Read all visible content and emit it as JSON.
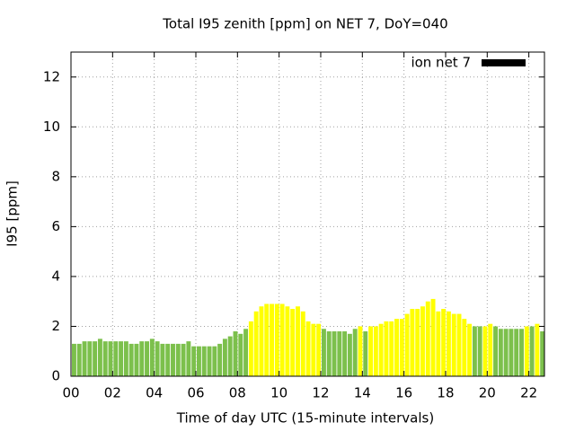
{
  "chart_data": {
    "type": "bar",
    "title": "Total I95 zenith [ppm] on NET 7, DoY=040",
    "x_label": "Time of day UTC (15-minute intervals)",
    "y_label": "I95 [ppm]",
    "x": [
      0,
      0.25,
      0.5,
      0.75,
      1,
      1.25,
      1.5,
      1.75,
      2,
      2.25,
      2.5,
      2.75,
      3,
      3.25,
      3.5,
      3.75,
      4,
      4.25,
      4.5,
      4.75,
      5,
      5.25,
      5.5,
      5.75,
      6,
      6.25,
      6.5,
      6.75,
      7,
      7.25,
      7.5,
      7.75,
      8,
      8.25,
      8.5,
      8.75,
      9,
      9.25,
      9.5,
      9.75,
      10,
      10.25,
      10.5,
      10.75,
      11,
      11.25,
      11.5,
      11.75,
      12,
      12.25,
      12.5,
      12.75,
      13,
      13.25,
      13.5,
      13.75,
      14,
      14.25,
      14.5,
      14.75,
      15,
      15.25,
      15.5,
      15.75,
      16,
      16.25,
      16.5,
      16.75,
      17,
      17.25,
      17.5,
      17.75,
      18,
      18.25,
      18.5,
      18.75,
      19,
      19.25,
      19.5,
      19.75,
      20,
      20.25,
      20.5,
      20.75,
      21,
      21.25,
      21.5,
      21.75,
      22,
      22.25,
      22.5
    ],
    "series": [
      {
        "name": "ion net 7",
        "color": "#000000",
        "values": [
          1.3,
          1.3,
          1.4,
          1.4,
          1.4,
          1.5,
          1.4,
          1.4,
          1.4,
          1.4,
          1.4,
          1.3,
          1.3,
          1.4,
          1.4,
          1.5,
          1.4,
          1.3,
          1.3,
          1.3,
          1.3,
          1.3,
          1.4,
          1.2,
          1.2,
          1.2,
          1.2,
          1.2,
          1.3,
          1.5,
          1.6,
          1.8,
          1.7,
          1.9,
          2.2,
          2.6,
          2.8,
          2.9,
          2.9,
          2.9,
          2.9,
          2.8,
          2.7,
          2.8,
          2.6,
          2.2,
          2.1,
          2.1,
          1.9,
          1.8,
          1.8,
          1.8,
          1.8,
          1.7,
          1.9,
          2.0,
          1.8,
          2.0,
          2.0,
          2.1,
          2.2,
          2.2,
          2.3,
          2.3,
          2.5,
          2.7,
          2.7,
          2.8,
          3.0,
          3.1,
          2.6,
          2.7,
          2.6,
          2.5,
          2.5,
          2.3,
          2.1,
          2.0,
          2.0,
          2.0,
          2.1,
          2.0,
          1.9,
          1.9,
          1.9,
          1.9,
          1.9,
          2.0,
          2.0,
          2.1,
          1.8
        ],
        "bar_colors": [
          "#7cc04c",
          "#7cc04c",
          "#7cc04c",
          "#7cc04c",
          "#7cc04c",
          "#7cc04c",
          "#7cc04c",
          "#7cc04c",
          "#7cc04c",
          "#7cc04c",
          "#7cc04c",
          "#7cc04c",
          "#7cc04c",
          "#7cc04c",
          "#7cc04c",
          "#7cc04c",
          "#7cc04c",
          "#7cc04c",
          "#7cc04c",
          "#7cc04c",
          "#7cc04c",
          "#7cc04c",
          "#7cc04c",
          "#7cc04c",
          "#7cc04c",
          "#7cc04c",
          "#7cc04c",
          "#7cc04c",
          "#7cc04c",
          "#7cc04c",
          "#7cc04c",
          "#7cc04c",
          "#7cc04c",
          "#7cc04c",
          "#ffff00",
          "#ffff00",
          "#ffff00",
          "#ffff00",
          "#ffff00",
          "#ffff00",
          "#ffff00",
          "#ffff00",
          "#ffff00",
          "#ffff00",
          "#ffff00",
          "#ffff00",
          "#ffff00",
          "#ffff00",
          "#7cc04c",
          "#7cc04c",
          "#7cc04c",
          "#7cc04c",
          "#7cc04c",
          "#7cc04c",
          "#7cc04c",
          "#ffff00",
          "#7cc04c",
          "#ffff00",
          "#ffff00",
          "#ffff00",
          "#ffff00",
          "#ffff00",
          "#ffff00",
          "#ffff00",
          "#ffff00",
          "#ffff00",
          "#ffff00",
          "#ffff00",
          "#ffff00",
          "#ffff00",
          "#ffff00",
          "#ffff00",
          "#ffff00",
          "#ffff00",
          "#ffff00",
          "#ffff00",
          "#ffff00",
          "#7cc04c",
          "#7cc04c",
          "#ffff00",
          "#ffff00",
          "#7cc04c",
          "#7cc04c",
          "#7cc04c",
          "#7cc04c",
          "#7cc04c",
          "#7cc04c",
          "#ffff00",
          "#7cc04c",
          "#ffff00",
          "#7cc04c"
        ]
      }
    ],
    "xlim": [
      0,
      22.75
    ],
    "xticks": [
      {
        "value": 0,
        "label": "00"
      },
      {
        "value": 2,
        "label": "02"
      },
      {
        "value": 4,
        "label": "04"
      },
      {
        "value": 6,
        "label": "06"
      },
      {
        "value": 8,
        "label": "08"
      },
      10,
      12,
      14,
      16,
      18,
      20,
      22
    ],
    "ylim": [
      0,
      13
    ],
    "yticks": [
      0,
      2,
      4,
      6,
      8,
      10,
      12
    ],
    "grid": true,
    "legend": "top-right"
  }
}
